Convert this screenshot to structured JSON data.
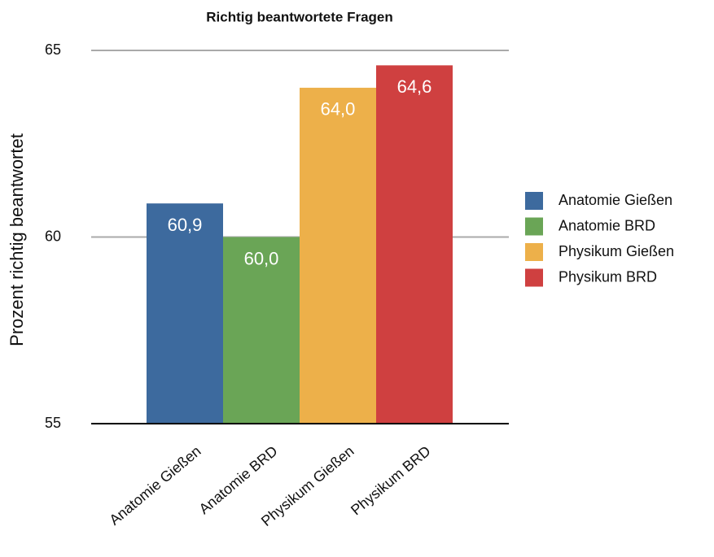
{
  "chart_data": {
    "type": "bar",
    "title": "Richtig beantwortete Fragen",
    "y_label": "Prozent richtig beantwortet",
    "categories": [
      "Anatomie Gießen",
      "Anatomie BRD",
      "Physikum Gießen",
      "Physikum BRD"
    ],
    "values": [
      60.9,
      60.0,
      64.0,
      64.6
    ],
    "value_labels": [
      "60,9",
      "60,0",
      "64,0",
      "64,6"
    ],
    "colors": [
      "#3d6a9e",
      "#6aa556",
      "#edb04a",
      "#cf4040"
    ],
    "ylim": [
      55,
      65
    ],
    "yticks": [
      55,
      60,
      65
    ],
    "grid": true,
    "legend": "right"
  }
}
